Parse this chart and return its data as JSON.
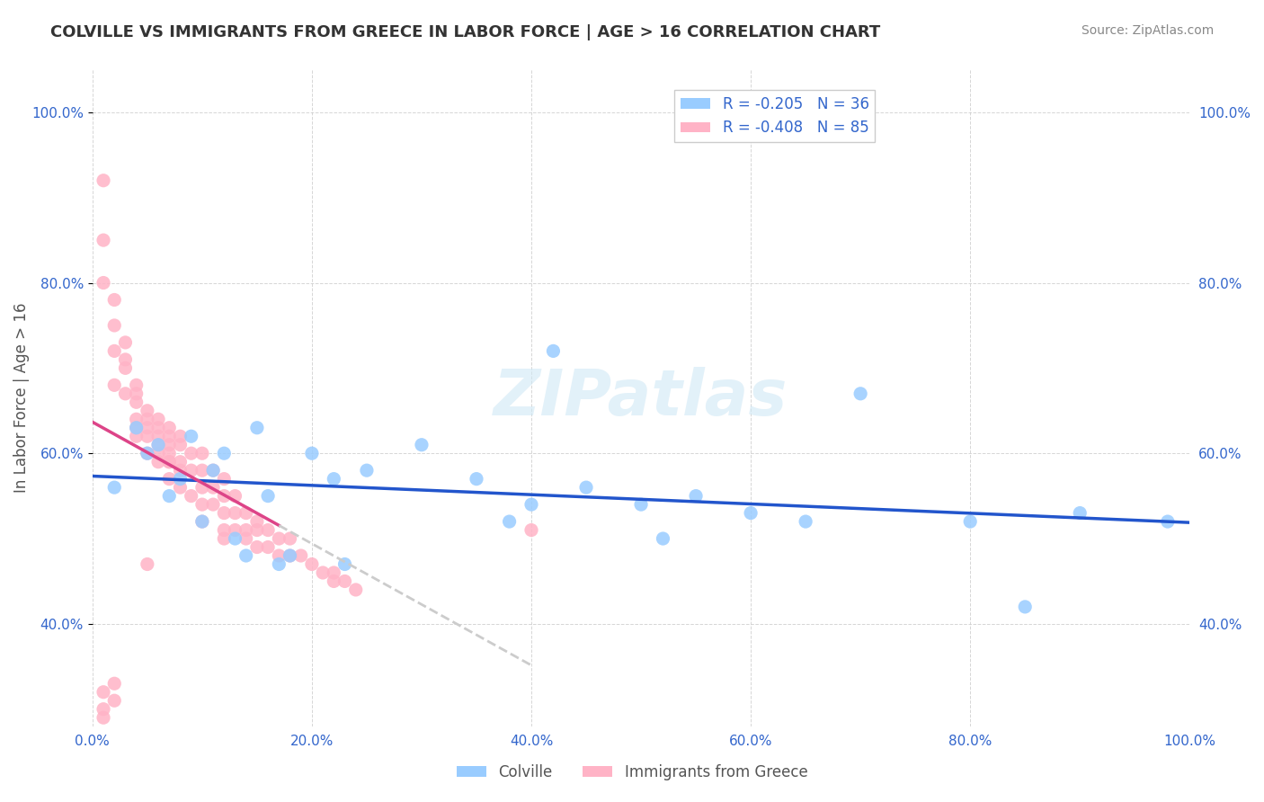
{
  "title": "COLVILLE VS IMMIGRANTS FROM GREECE IN LABOR FORCE | AGE > 16 CORRELATION CHART",
  "source": "Source: ZipAtlas.com",
  "xlabel": "",
  "ylabel": "In Labor Force | Age > 16",
  "xlim": [
    0.0,
    1.0
  ],
  "ylim": [
    0.28,
    1.05
  ],
  "yticks": [
    0.4,
    0.6,
    0.8,
    1.0
  ],
  "ytick_labels": [
    "40.0%",
    "60.0%",
    "80.0%",
    "100.0%"
  ],
  "xticks": [
    0.0,
    0.2,
    0.4,
    0.6,
    0.8,
    1.0
  ],
  "xtick_labels": [
    "0.0%",
    "20.0%",
    "40.0%",
    "60.0%",
    "80.0%",
    "100.0%"
  ],
  "colville_color": "#99ccff",
  "greece_color": "#ffb3c6",
  "trend_blue": "#2255cc",
  "trend_pink": "#dd4488",
  "trend_pink_dashed": "#cccccc",
  "legend_R_blue": "R = -0.205",
  "legend_N_blue": "N = 36",
  "legend_R_pink": "R = -0.408",
  "legend_N_pink": "N = 85",
  "legend_label_blue": "Colville",
  "legend_label_pink": "Immigrants from Greece",
  "watermark": "ZIPatlas",
  "colville_x": [
    0.02,
    0.04,
    0.05,
    0.06,
    0.07,
    0.08,
    0.09,
    0.1,
    0.11,
    0.12,
    0.13,
    0.14,
    0.15,
    0.16,
    0.17,
    0.18,
    0.2,
    0.22,
    0.23,
    0.25,
    0.3,
    0.35,
    0.38,
    0.4,
    0.42,
    0.45,
    0.5,
    0.52,
    0.55,
    0.6,
    0.65,
    0.7,
    0.8,
    0.85,
    0.9,
    0.98
  ],
  "colville_y": [
    0.56,
    0.63,
    0.6,
    0.61,
    0.55,
    0.57,
    0.62,
    0.52,
    0.58,
    0.6,
    0.5,
    0.48,
    0.63,
    0.55,
    0.47,
    0.48,
    0.6,
    0.57,
    0.47,
    0.58,
    0.61,
    0.57,
    0.52,
    0.54,
    0.72,
    0.56,
    0.54,
    0.5,
    0.55,
    0.53,
    0.52,
    0.67,
    0.52,
    0.42,
    0.53,
    0.52
  ],
  "greece_x": [
    0.01,
    0.01,
    0.02,
    0.02,
    0.02,
    0.03,
    0.03,
    0.03,
    0.04,
    0.04,
    0.04,
    0.04,
    0.04,
    0.05,
    0.05,
    0.05,
    0.05,
    0.06,
    0.06,
    0.06,
    0.06,
    0.06,
    0.07,
    0.07,
    0.07,
    0.07,
    0.07,
    0.07,
    0.08,
    0.08,
    0.08,
    0.08,
    0.08,
    0.09,
    0.09,
    0.09,
    0.1,
    0.1,
    0.1,
    0.1,
    0.1,
    0.11,
    0.11,
    0.11,
    0.12,
    0.12,
    0.12,
    0.12,
    0.12,
    0.13,
    0.13,
    0.13,
    0.14,
    0.14,
    0.14,
    0.15,
    0.15,
    0.15,
    0.16,
    0.16,
    0.17,
    0.17,
    0.18,
    0.18,
    0.19,
    0.2,
    0.21,
    0.22,
    0.22,
    0.23,
    0.24,
    0.01,
    0.02,
    0.03,
    0.04,
    0.05,
    0.06,
    0.07,
    0.01,
    0.02,
    0.01,
    0.05,
    0.4,
    0.02,
    0.01
  ],
  "greece_y": [
    0.92,
    0.8,
    0.75,
    0.72,
    0.68,
    0.73,
    0.7,
    0.67,
    0.68,
    0.66,
    0.64,
    0.63,
    0.62,
    0.65,
    0.63,
    0.62,
    0.6,
    0.64,
    0.63,
    0.62,
    0.6,
    0.59,
    0.63,
    0.62,
    0.61,
    0.6,
    0.59,
    0.57,
    0.62,
    0.61,
    0.59,
    0.58,
    0.56,
    0.6,
    0.58,
    0.55,
    0.6,
    0.58,
    0.56,
    0.54,
    0.52,
    0.58,
    0.56,
    0.54,
    0.57,
    0.55,
    0.53,
    0.51,
    0.5,
    0.55,
    0.53,
    0.51,
    0.53,
    0.51,
    0.5,
    0.52,
    0.51,
    0.49,
    0.51,
    0.49,
    0.5,
    0.48,
    0.5,
    0.48,
    0.48,
    0.47,
    0.46,
    0.46,
    0.45,
    0.45,
    0.44,
    0.85,
    0.78,
    0.71,
    0.67,
    0.64,
    0.61,
    0.59,
    0.3,
    0.31,
    0.32,
    0.47,
    0.51,
    0.33,
    0.29
  ]
}
